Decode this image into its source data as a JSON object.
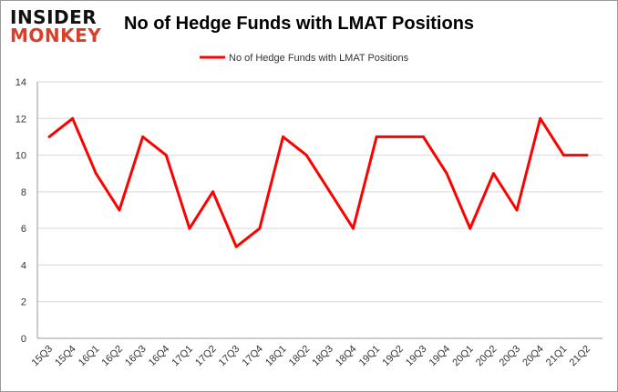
{
  "logo": {
    "line1": "INSIDER",
    "line2": "MONKEY"
  },
  "chart_data": {
    "type": "line",
    "title": "No of Hedge Funds with LMAT Positions",
    "categories": [
      "15Q3",
      "15Q4",
      "16Q1",
      "16Q2",
      "16Q3",
      "16Q4",
      "17Q1",
      "17Q2",
      "17Q3",
      "17Q4",
      "18Q1",
      "18Q2",
      "18Q3",
      "18Q4",
      "19Q1",
      "19Q2",
      "19Q3",
      "19Q4",
      "20Q1",
      "20Q2",
      "20Q3",
      "20Q4",
      "21Q1",
      "21Q2"
    ],
    "series": [
      {
        "name": "No of Hedge Funds with LMAT Positions",
        "color": "#ff0000",
        "values": [
          11,
          12,
          9,
          7,
          11,
          10,
          6,
          8,
          5,
          6,
          11,
          10,
          8,
          6,
          11,
          11,
          11,
          9,
          6,
          9,
          7,
          12,
          10,
          10
        ]
      }
    ],
    "ylim": [
      0,
      14
    ],
    "yticks": [
      0,
      2,
      4,
      6,
      8,
      10,
      12,
      14
    ],
    "grid": true,
    "legend": "top-center"
  }
}
